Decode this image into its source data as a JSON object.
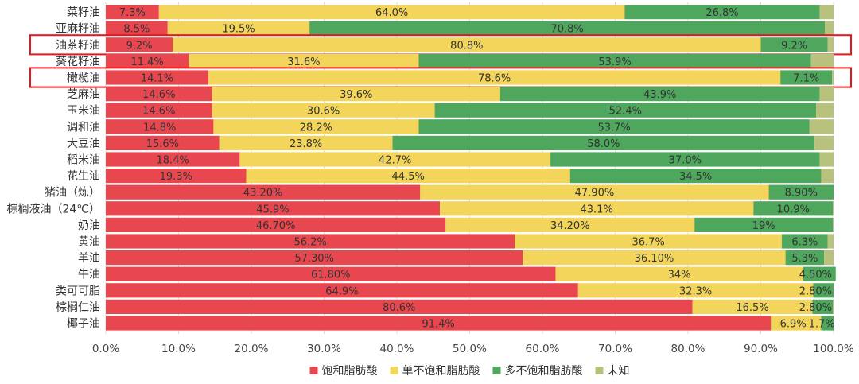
{
  "chart_data": {
    "type": "bar",
    "orientation": "horizontal",
    "stacked": true,
    "categories": [
      "菜籽油",
      "亚麻籽油",
      "油茶籽油",
      "葵花籽油",
      "橄榄油",
      "芝麻油",
      "玉米油",
      "调和油",
      "大豆油",
      "稻米油",
      "花生油",
      "猪油（炼）",
      "棕榈液油（24℃）",
      "奶油",
      "黄油",
      "羊油",
      "牛油",
      "类可可脂",
      "棕榈仁油",
      "椰子油"
    ],
    "highlighted": [
      "油茶籽油",
      "橄榄油"
    ],
    "series": [
      {
        "name": "饱和脂肪酸",
        "color": "#e8474f",
        "values": [
          7.3,
          8.5,
          9.2,
          11.4,
          14.1,
          14.6,
          14.6,
          14.8,
          15.6,
          18.4,
          19.3,
          43.2,
          45.9,
          46.7,
          56.2,
          57.3,
          61.8,
          64.9,
          80.6,
          91.4
        ],
        "labels": [
          "7.3%",
          "8.5%",
          "9.2%",
          "11.4%",
          "14.1%",
          "14.6%",
          "14.6%",
          "14.8%",
          "15.6%",
          "18.4%",
          "19.3%",
          "43.20%",
          "45.9%",
          "46.70%",
          "56.2%",
          "57.30%",
          "61.80%",
          "64.9%",
          "80.6%",
          "91.4%"
        ]
      },
      {
        "name": "单不饱和脂肪酸",
        "color": "#f2d55a",
        "values": [
          64.0,
          19.5,
          80.8,
          31.6,
          78.6,
          39.6,
          30.6,
          28.2,
          23.8,
          42.7,
          44.5,
          47.9,
          43.1,
          34.2,
          36.7,
          36.1,
          34,
          32.3,
          16.5,
          6.9
        ],
        "labels": [
          "64.0%",
          "19.5%",
          "80.8%",
          "31.6%",
          "78.6%",
          "39.6%",
          "30.6%",
          "28.2%",
          "23.8%",
          "42.7%",
          "44.5%",
          "47.90%",
          "43.1%",
          "34.20%",
          "36.7%",
          "36.10%",
          "34%",
          "32.3%",
          "16.5%",
          "6.9%"
        ]
      },
      {
        "name": "多不饱和脂肪酸",
        "color": "#4ea75c",
        "values": [
          26.8,
          70.8,
          9.2,
          53.9,
          7.1,
          43.9,
          52.4,
          53.7,
          58.0,
          37.0,
          34.5,
          8.9,
          10.9,
          19,
          6.3,
          5.3,
          4.5,
          2.8,
          2.8,
          1.7
        ],
        "labels": [
          "26.8%",
          "70.8%",
          "9.2%",
          "53.9%",
          "7.1%",
          "43.9%",
          "52.4%",
          "53.7%",
          "58.0%",
          "37.0%",
          "34.5%",
          "8.90%",
          "10.9%",
          "19%",
          "6.3%",
          "5.3%",
          "4.50%",
          "2.80%",
          "2.80%",
          "1.7%"
        ]
      },
      {
        "name": "未知",
        "color": "#b9c27c",
        "values": [
          1.9,
          1.2,
          0.8,
          3.1,
          0.2,
          1.9,
          2.4,
          3.3,
          2.6,
          1.9,
          1.7,
          0,
          0.1,
          0.1,
          0.8,
          1.3,
          0,
          0,
          0.1,
          0
        ],
        "labels": []
      }
    ],
    "xlabel": "",
    "ylabel": "",
    "xlim": [
      0,
      100
    ],
    "xticks": [
      "0.0%",
      "10.0%",
      "20.0%",
      "30.0%",
      "40.0%",
      "50.0%",
      "60.0%",
      "70.0%",
      "80.0%",
      "90.0%",
      "100.0%"
    ],
    "legend_position": "bottom-center"
  }
}
